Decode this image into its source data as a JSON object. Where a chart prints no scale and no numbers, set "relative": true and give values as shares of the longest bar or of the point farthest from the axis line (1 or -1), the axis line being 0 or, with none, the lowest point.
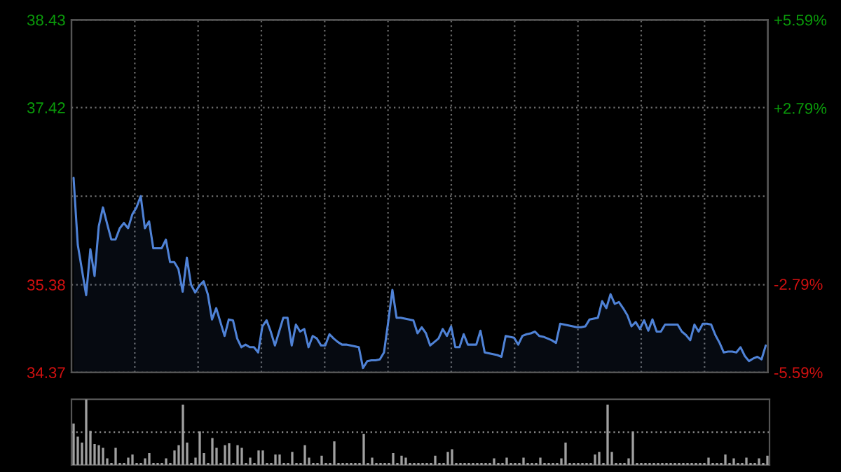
{
  "chart_data": [
    {
      "type": "area",
      "categories": [
        null,
        null,
        null,
        null,
        null,
        null,
        null,
        null,
        null,
        null,
        null,
        null,
        null,
        null,
        null,
        null,
        null,
        null,
        null,
        null,
        null,
        null,
        null,
        null,
        null,
        null,
        null,
        null,
        null,
        null,
        null,
        null,
        null,
        null,
        null,
        null,
        null,
        null,
        null,
        null,
        null,
        null,
        null,
        null,
        null,
        null,
        null,
        null,
        null,
        null,
        null,
        null,
        null,
        null,
        null,
        null,
        null,
        null,
        null,
        null,
        null,
        null,
        null,
        null,
        null,
        null,
        null,
        null,
        null,
        null,
        null,
        null,
        null,
        null,
        null,
        null,
        null,
        null,
        null,
        null,
        null,
        null,
        null,
        null,
        null,
        null,
        null,
        null,
        null,
        null,
        null,
        null,
        null,
        null,
        null,
        null,
        null,
        null,
        null,
        null,
        null,
        null,
        null,
        null,
        null,
        null,
        null,
        null,
        null,
        null,
        null,
        null,
        null,
        null,
        null,
        null,
        null,
        null,
        null,
        null,
        null,
        null,
        null,
        null,
        null,
        null,
        null,
        null,
        null,
        null,
        null,
        null,
        null,
        null,
        null,
        null,
        null,
        null,
        null,
        null,
        null,
        null,
        null,
        null,
        null,
        null,
        null,
        null,
        null,
        null,
        null,
        null,
        null,
        null,
        null,
        null,
        null,
        null,
        null,
        null,
        null,
        null,
        null,
        null,
        null,
        null
      ],
      "ylim": [
        34.37,
        38.43
      ],
      "yticks": [
        38.43,
        37.42,
        {
          "value": 36.4,
          "label": null
        },
        35.38,
        34.37
      ],
      "y2lim": [
        -5.59,
        5.59
      ],
      "y2ticks": [
        {
          "value": 5.59,
          "label": "+5.59%"
        },
        {
          "value": 2.79,
          "label": "+2.79%"
        },
        {
          "value": 0,
          "label": null
        },
        {
          "value": -2.79,
          "label": "-2.79%"
        },
        {
          "value": -5.59,
          "label": "-5.59%"
        }
      ],
      "grid": true,
      "tick_labels": "y",
      "series": [
        {
          "color": "#4f82d6",
          "values": [
            36.61,
            35.84,
            35.55,
            35.26,
            35.79,
            35.48,
            36.05,
            36.27,
            36.08,
            35.9,
            35.9,
            36.03,
            36.09,
            36.03,
            36.19,
            36.27,
            36.4,
            36.03,
            36.11,
            35.8,
            35.8,
            35.8,
            35.9,
            35.64,
            35.64,
            35.56,
            35.3,
            35.69,
            35.38,
            35.29,
            35.37,
            35.42,
            35.27,
            34.98,
            35.11,
            34.95,
            34.79,
            34.98,
            34.97,
            34.76,
            34.66,
            34.69,
            34.66,
            34.66,
            34.6,
            34.9,
            34.97,
            34.84,
            34.68,
            34.84,
            35.0,
            35.0,
            34.68,
            34.92,
            34.84,
            34.87,
            34.66,
            34.79,
            34.76,
            34.68,
            34.68,
            34.81,
            34.76,
            34.72,
            34.69,
            34.69,
            34.68,
            34.67,
            34.66,
            34.42,
            34.5,
            34.51,
            34.51,
            34.52,
            34.6,
            34.95,
            35.32,
            35.0,
            35.0,
            34.99,
            34.98,
            34.97,
            34.82,
            34.89,
            34.82,
            34.68,
            34.72,
            34.76,
            34.87,
            34.79,
            34.9,
            34.66,
            34.66,
            34.81,
            34.69,
            34.69,
            34.69,
            34.85,
            34.6,
            34.59,
            34.58,
            34.57,
            34.55,
            34.79,
            34.78,
            34.77,
            34.69,
            34.79,
            34.81,
            34.82,
            34.84,
            34.79,
            34.78,
            34.76,
            34.74,
            34.71,
            34.93,
            34.92,
            34.91,
            34.9,
            34.89,
            34.89,
            34.9,
            34.98,
            34.99,
            35.0,
            35.19,
            35.11,
            35.27,
            35.16,
            35.18,
            35.11,
            35.03,
            34.9,
            34.95,
            34.87,
            34.97,
            34.85,
            34.98,
            34.84,
            34.84,
            34.92,
            34.92,
            34.92,
            34.92,
            34.84,
            34.8,
            34.74,
            34.92,
            34.84,
            34.93,
            34.93,
            34.92,
            34.8,
            34.71,
            34.6,
            34.61,
            34.61,
            34.6,
            34.66,
            34.56,
            34.5,
            34.53,
            34.55,
            34.52,
            34.68
          ]
        }
      ]
    },
    {
      "type": "bar",
      "relative": true,
      "tick_labels": false,
      "categories": [
        null,
        null,
        null,
        null,
        null,
        null,
        null,
        null,
        null,
        null,
        null,
        null,
        null,
        null,
        null,
        null,
        null,
        null,
        null,
        null,
        null,
        null,
        null,
        null,
        null,
        null,
        null,
        null,
        null,
        null,
        null,
        null,
        null,
        null,
        null,
        null,
        null,
        null,
        null,
        null,
        null,
        null,
        null,
        null,
        null,
        null,
        null,
        null,
        null,
        null,
        null,
        null,
        null,
        null,
        null,
        null,
        null,
        null,
        null,
        null,
        null,
        null,
        null,
        null,
        null,
        null,
        null,
        null,
        null,
        null,
        null,
        null,
        null,
        null,
        null,
        null,
        null,
        null,
        null,
        null,
        null,
        null,
        null,
        null,
        null,
        null,
        null,
        null,
        null,
        null,
        null,
        null,
        null,
        null,
        null,
        null,
        null,
        null,
        null,
        null,
        null,
        null,
        null,
        null,
        null,
        null,
        null,
        null,
        null,
        null,
        null,
        null,
        null,
        null,
        null,
        null,
        null,
        null,
        null,
        null,
        null,
        null,
        null,
        null,
        null,
        null,
        null,
        null,
        null,
        null,
        null,
        null,
        null,
        null,
        null,
        null,
        null,
        null,
        null,
        null,
        null,
        null,
        null,
        null,
        null,
        null,
        null,
        null,
        null,
        null,
        null,
        null,
        null,
        null,
        null,
        null,
        null,
        null,
        null,
        null,
        null,
        null,
        null,
        null,
        null,
        null
      ],
      "ref_lines": [
        {
          "axis": "y",
          "value": 0.5,
          "label": null,
          "color": "#8a8a8a",
          "line_style": "dotted"
        }
      ],
      "series": [
        {
          "color": "#a0a0a0",
          "values": [
            0.63,
            0.43,
            0.34,
            1.0,
            0.52,
            0.32,
            0.3,
            0.26,
            0.1,
            0.03,
            0.26,
            0.03,
            0.03,
            0.11,
            0.16,
            0.03,
            0.03,
            0.1,
            0.18,
            0.03,
            0.03,
            0.03,
            0.1,
            0.03,
            0.22,
            0.3,
            0.92,
            0.34,
            0.03,
            0.11,
            0.51,
            0.18,
            0.03,
            0.41,
            0.26,
            0.03,
            0.3,
            0.33,
            0.03,
            0.3,
            0.26,
            0.03,
            0.11,
            0.03,
            0.22,
            0.22,
            0.03,
            0.03,
            0.16,
            0.16,
            0.03,
            0.03,
            0.2,
            0.03,
            0.03,
            0.3,
            0.11,
            0.03,
            0.03,
            0.14,
            0.03,
            0.03,
            0.36,
            0.03,
            0.03,
            0.03,
            0.03,
            0.03,
            0.03,
            0.47,
            0.03,
            0.11,
            0.03,
            0.03,
            0.03,
            0.03,
            0.18,
            0.03,
            0.14,
            0.11,
            0.03,
            0.03,
            0.03,
            0.03,
            0.03,
            0.03,
            0.14,
            0.03,
            0.03,
            0.2,
            0.24,
            0.03,
            0.03,
            0.03,
            0.03,
            0.03,
            0.03,
            0.03,
            0.03,
            0.03,
            0.1,
            0.03,
            0.03,
            0.11,
            0.03,
            0.03,
            0.03,
            0.11,
            0.03,
            0.03,
            0.03,
            0.11,
            0.03,
            0.03,
            0.03,
            0.03,
            0.1,
            0.34,
            0.03,
            0.03,
            0.03,
            0.03,
            0.03,
            0.03,
            0.16,
            0.2,
            0.03,
            0.92,
            0.2,
            0.03,
            0.03,
            0.03,
            0.1,
            0.51,
            0.03,
            0.03,
            0.03,
            0.03,
            0.03,
            0.03,
            0.03,
            0.03,
            0.03,
            0.03,
            0.03,
            0.03,
            0.03,
            0.03,
            0.03,
            0.03,
            0.03,
            0.11,
            0.03,
            0.03,
            0.03,
            0.16,
            0.03,
            0.1,
            0.03,
            0.03,
            0.11,
            0.03,
            0.03,
            0.1,
            0.03,
            0.14
          ]
        }
      ]
    }
  ]
}
